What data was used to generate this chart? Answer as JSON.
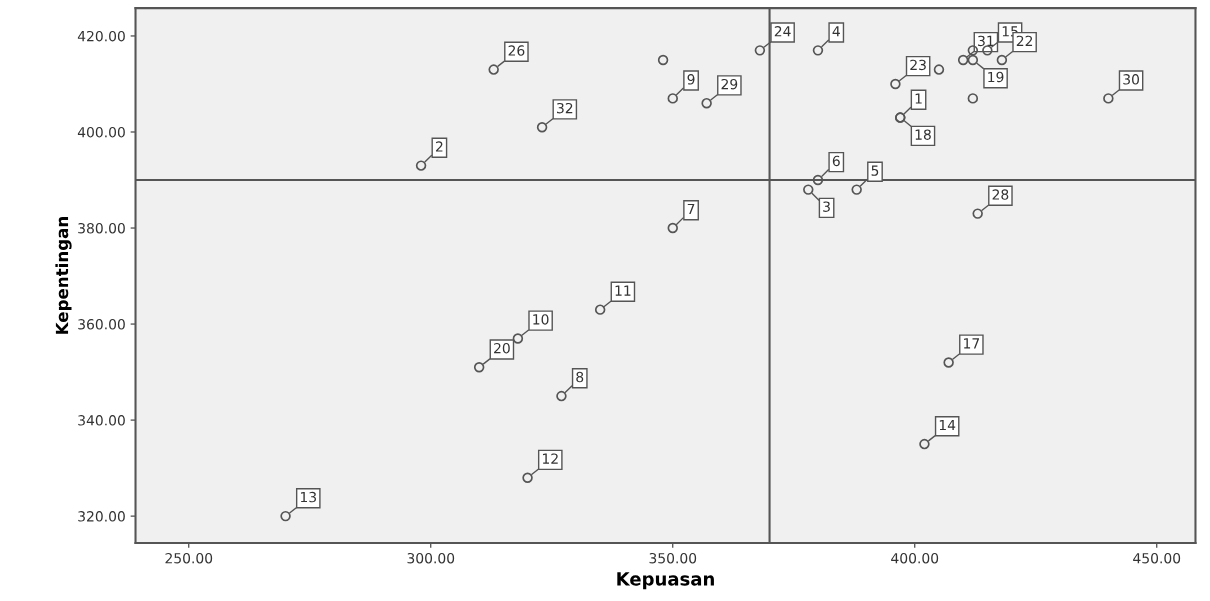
{
  "chart_data": {
    "type": "scatter",
    "xlabel": "Kepuasan",
    "ylabel": "Kepentingan",
    "x": [
      270,
      320,
      327,
      310,
      318,
      335,
      350,
      298,
      313,
      323,
      348,
      350,
      357,
      368,
      380,
      396,
      405,
      397,
      397,
      412,
      415,
      410,
      412,
      418,
      412,
      440,
      380,
      378,
      388,
      413,
      407,
      402
    ],
    "series": [
      {
        "color": "#555555",
        "values": [
          320,
          328,
          345,
          351,
          357,
          363,
          380,
          393,
          413,
          401,
          415,
          407,
          406,
          417,
          417,
          410,
          413,
          403,
          403,
          417,
          417,
          415,
          415,
          415,
          407,
          407,
          390,
          388,
          388,
          383,
          352,
          335
        ]
      }
    ],
    "marker": "circle",
    "grid": false,
    "xlim": [
      239,
      458
    ],
    "ylim": [
      314.4,
      425.8
    ],
    "xticks": [
      {
        "value": 250,
        "label": "250.00"
      },
      {
        "value": 300,
        "label": "300.00"
      },
      {
        "value": 350,
        "label": "350.00"
      },
      {
        "value": 400,
        "label": "400.00"
      },
      {
        "value": 450,
        "label": "450.00"
      }
    ],
    "yticks": [
      {
        "value": 320,
        "label": "320.00"
      },
      {
        "value": 340,
        "label": "340.00"
      },
      {
        "value": 360,
        "label": "360.00"
      },
      {
        "value": 380,
        "label": "380.00"
      },
      {
        "value": 400,
        "label": "400.00"
      },
      {
        "value": 420,
        "label": "420.00"
      }
    ],
    "ref_lines": [
      {
        "axis": "x",
        "value": 370,
        "color": "#555555"
      },
      {
        "axis": "y",
        "value": 390,
        "color": "#555555"
      }
    ],
    "annotations": [
      {
        "text": "13",
        "x": 270,
        "y": 320
      },
      {
        "text": "12",
        "x": 320,
        "y": 328
      },
      {
        "text": "8",
        "x": 327,
        "y": 345
      },
      {
        "text": "20",
        "x": 310,
        "y": 351
      },
      {
        "text": "10",
        "x": 318,
        "y": 357
      },
      {
        "text": "11",
        "x": 335,
        "y": 363
      },
      {
        "text": "7",
        "x": 350,
        "y": 380
      },
      {
        "text": "2",
        "x": 298,
        "y": 393
      },
      {
        "text": "26",
        "x": 313,
        "y": 413
      },
      {
        "text": "32",
        "x": 323,
        "y": 401
      },
      {
        "text": "9",
        "x": 350,
        "y": 407
      },
      {
        "text": "29",
        "x": 357,
        "y": 406
      },
      {
        "text": "24",
        "x": 368,
        "y": 417
      },
      {
        "text": "4",
        "x": 380,
        "y": 417
      },
      {
        "text": "23",
        "x": 396,
        "y": 410
      },
      {
        "text": "1",
        "x": 397,
        "y": 403
      },
      {
        "text": "18",
        "x": 397,
        "y": 403
      },
      {
        "text": "31",
        "x": 410,
        "y": 415
      },
      {
        "text": "15",
        "x": 415,
        "y": 417
      },
      {
        "text": "19",
        "x": 412,
        "y": 415
      },
      {
        "text": "22",
        "x": 418,
        "y": 415
      },
      {
        "text": "30",
        "x": 440,
        "y": 407
      },
      {
        "text": "6",
        "x": 380,
        "y": 390
      },
      {
        "text": "3",
        "x": 378,
        "y": 388
      },
      {
        "text": "5",
        "x": 388,
        "y": 388
      },
      {
        "text": "28",
        "x": 413,
        "y": 383
      },
      {
        "text": "17",
        "x": 407,
        "y": 352
      },
      {
        "text": "14",
        "x": 402,
        "y": 335
      }
    ]
  }
}
